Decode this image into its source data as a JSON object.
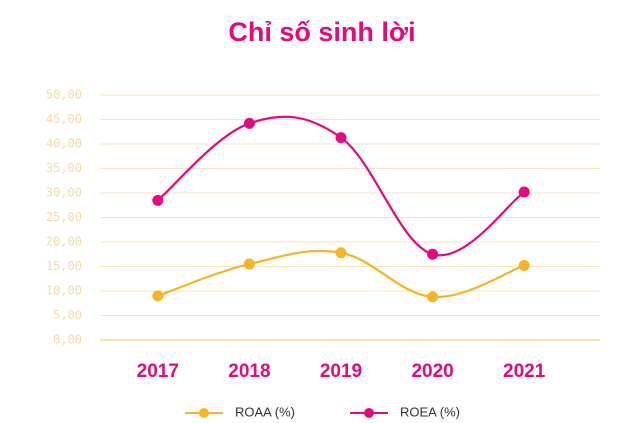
{
  "chart_data": {
    "type": "line",
    "title": "Chỉ số sinh lời",
    "categories": [
      "2017",
      "2018",
      "2019",
      "2020",
      "2021"
    ],
    "series": [
      {
        "name": "ROAA (%)",
        "color": "#f6b623",
        "values": [
          9,
          15.5,
          17.8,
          8.8,
          15.2
        ]
      },
      {
        "name": "ROEA (%)",
        "color": "#e5097f",
        "values": [
          28.5,
          44.2,
          41.3,
          17.5,
          30.2
        ]
      }
    ],
    "ylim": [
      0,
      50
    ],
    "yticks": [
      {
        "value": 0,
        "label": "0,00"
      },
      {
        "value": 5,
        "label": "5,00"
      },
      {
        "value": 10,
        "label": "10,00"
      },
      {
        "value": 15,
        "label": "15,00"
      },
      {
        "value": 20,
        "label": "20,00"
      },
      {
        "value": 25,
        "label": "25,00"
      },
      {
        "value": 30,
        "label": "30,00"
      },
      {
        "value": 35,
        "label": "35,00"
      },
      {
        "value": 40,
        "label": "40,00"
      },
      {
        "value": 45,
        "label": "45,00"
      },
      {
        "value": 50,
        "label": "50,00"
      }
    ],
    "grid": true,
    "legend": "bottom"
  }
}
